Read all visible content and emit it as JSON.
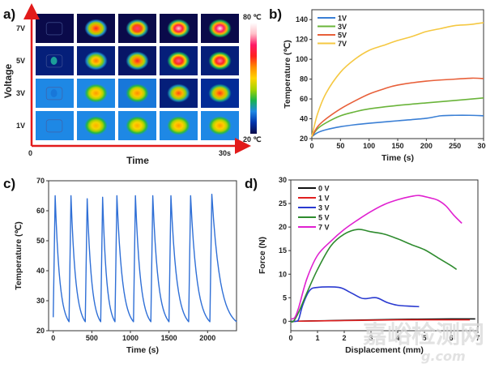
{
  "chart_data": [
    {
      "panel": "a)",
      "type": "heatmap",
      "title": "",
      "xlabel": "Time",
      "ylabel": "Voltage",
      "x_ticks": [
        "0",
        "30s"
      ],
      "rows": [
        "7V",
        "5V",
        "3V",
        "1V"
      ],
      "columns": 5,
      "colorbar": {
        "max_label": "80 ℃",
        "min_label": "20 ℃",
        "colors": [
          "#0a0a4a",
          "#0033aa",
          "#1e88e5",
          "#19b34d",
          "#a8d400",
          "#ffd400",
          "#ff8c00",
          "#ff2020",
          "#ff1a66",
          "#ffc0c8",
          "#ffffff"
        ]
      },
      "intensity": [
        [
          0.02,
          0.72,
          0.82,
          0.92,
          0.98
        ],
        [
          0.25,
          0.62,
          0.72,
          0.84,
          0.86
        ],
        [
          0.18,
          0.58,
          0.6,
          0.66,
          0.68
        ],
        [
          0.05,
          0.55,
          0.56,
          0.58,
          0.58
        ]
      ],
      "background": [
        [
          0.0,
          0.0,
          0.0,
          0.0,
          0.0
        ],
        [
          0.05,
          0.05,
          0.03,
          0.05,
          0.05
        ],
        [
          0.2,
          0.2,
          0.18,
          0.05,
          0.08
        ],
        [
          0.2,
          0.2,
          0.2,
          0.2,
          0.2
        ]
      ]
    },
    {
      "panel": "b)",
      "type": "line",
      "xlabel": "Time (s)",
      "ylabel": "Temperature (℃)",
      "xlim": [
        0,
        300
      ],
      "ylim": [
        20,
        150
      ],
      "x_ticks": [
        0,
        50,
        100,
        150,
        200,
        250,
        300
      ],
      "y_ticks": [
        20,
        40,
        60,
        80,
        100,
        120,
        140
      ],
      "legend": "top-left",
      "series": [
        {
          "name": "1V",
          "color": "#3a7fd5",
          "x": [
            0,
            10,
            25,
            50,
            75,
            100,
            150,
            200,
            225,
            250,
            275,
            300
          ],
          "y": [
            22,
            26,
            29,
            32,
            34,
            35.5,
            38,
            40.5,
            43,
            43.5,
            43.5,
            43
          ]
        },
        {
          "name": "3V",
          "color": "#6ab43a",
          "x": [
            0,
            10,
            25,
            50,
            75,
            100,
            150,
            200,
            250,
            300
          ],
          "y": [
            22,
            30,
            36,
            43,
            47,
            50,
            53.5,
            56,
            58.5,
            61
          ]
        },
        {
          "name": "5V",
          "color": "#e8603a",
          "x": [
            0,
            10,
            25,
            50,
            75,
            100,
            125,
            150,
            200,
            250,
            280,
            300
          ],
          "y": [
            22,
            32,
            40,
            50,
            58,
            65,
            70,
            74,
            78,
            80,
            81,
            80.5
          ]
        },
        {
          "name": "7V",
          "color": "#f5c842",
          "x": [
            0,
            10,
            25,
            50,
            75,
            100,
            125,
            150,
            175,
            200,
            225,
            250,
            275,
            300
          ],
          "y": [
            22,
            45,
            66,
            87,
            100,
            109,
            114,
            119,
            123,
            128,
            131,
            134,
            135,
            137
          ]
        }
      ]
    },
    {
      "panel": "c)",
      "type": "line",
      "xlabel": "Time (s)",
      "ylabel": "Temperature (℃)",
      "xlim": [
        -60,
        2375
      ],
      "ylim": [
        20,
        70
      ],
      "x_ticks": [
        0,
        500,
        1000,
        1500,
        2000
      ],
      "y_ticks": [
        20,
        30,
        40,
        50,
        60,
        70
      ],
      "series": [
        {
          "name": "cycling",
          "color": "#2f6fd6",
          "peaks_t": [
            25,
            230,
            440,
            640,
            825,
            1065,
            1290,
            1525,
            1780,
            2055
          ],
          "peaks_T": [
            65,
            65,
            64,
            64.5,
            65,
            65,
            65,
            65,
            65,
            65.5
          ],
          "troughs_t": [
            0,
            205,
            415,
            615,
            800,
            1040,
            1265,
            1500,
            1755,
            2030,
            2375
          ],
          "troughs_T": [
            24.5,
            23,
            23,
            23,
            23,
            23,
            23,
            23,
            23,
            23,
            23
          ]
        }
      ]
    },
    {
      "panel": "d)",
      "type": "line",
      "xlabel": "Displacement (mm)",
      "ylabel": "Force (N)",
      "xlim": [
        0,
        7
      ],
      "ylim": [
        -2,
        30
      ],
      "x_ticks": [
        0,
        1,
        2,
        3,
        4,
        5,
        6,
        7
      ],
      "y_ticks": [
        0,
        5,
        10,
        15,
        20,
        25,
        30
      ],
      "legend": "top-left",
      "series": [
        {
          "name": "0 V",
          "color": "#111111",
          "x": [
            0,
            2,
            4,
            6,
            6.9
          ],
          "y": [
            0,
            0.2,
            0.4,
            0.5,
            0.5
          ]
        },
        {
          "name": "1 V",
          "color": "#e02020",
          "x": [
            0,
            2,
            4,
            6,
            6.7
          ],
          "y": [
            0,
            0.15,
            0.3,
            0.3,
            0.3
          ]
        },
        {
          "name": "3 V",
          "color": "#2a3ad0",
          "x": [
            0,
            0.2,
            0.3,
            0.45,
            0.7,
            1.0,
            1.8,
            2.2,
            2.6,
            2.8,
            3.2,
            3.6,
            4.0,
            4.5,
            4.8
          ],
          "y": [
            0,
            0,
            0.5,
            3.5,
            6.5,
            7.2,
            7.2,
            6.2,
            5.0,
            4.8,
            5.0,
            4.0,
            3.4,
            3.2,
            3.1
          ]
        },
        {
          "name": "5 V",
          "color": "#2e8b2e",
          "x": [
            0,
            0.1,
            0.3,
            0.6,
            1.0,
            1.5,
            2.0,
            2.5,
            3.0,
            3.5,
            4.0,
            4.5,
            5.0,
            5.5,
            6.0,
            6.2
          ],
          "y": [
            0,
            0,
            2,
            6,
            11,
            16,
            18.5,
            19.5,
            19,
            18.5,
            17.5,
            16.3,
            15.2,
            13.5,
            11.8,
            11
          ]
        },
        {
          "name": "7 V",
          "color": "#e020d0",
          "x": [
            0,
            0.15,
            0.3,
            0.6,
            1.0,
            1.5,
            2.0,
            2.5,
            3.0,
            3.5,
            4.0,
            4.5,
            4.8,
            5.2,
            5.5,
            5.8,
            6.1,
            6.4
          ],
          "y": [
            0.5,
            0.8,
            3,
            9,
            14,
            17,
            19.5,
            21.5,
            23.3,
            24.8,
            25.8,
            26.5,
            26.7,
            26.2,
            25.7,
            24.5,
            22.5,
            20.8
          ]
        }
      ]
    }
  ],
  "watermark": {
    "text": "嘉峪检测网",
    "subtext": "g.com"
  }
}
